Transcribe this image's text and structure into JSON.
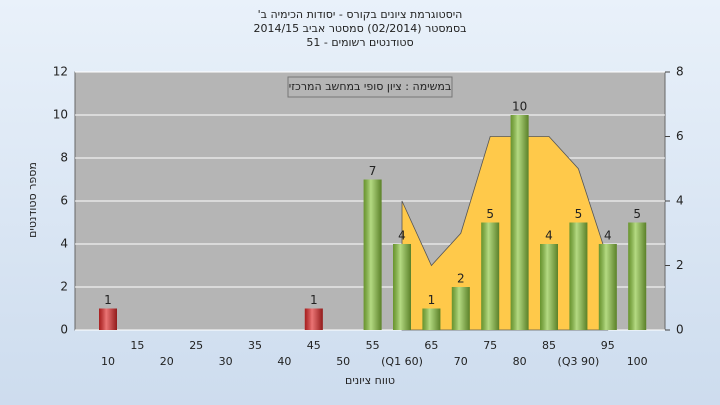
{
  "chart_data": {
    "type": "bar",
    "title_lines": [
      "היסטוגרמת ציונים בקורס - יסודות הכימיה ב'",
      "בסמסטר  (02/2014)  סמסטר אביב 2014/15",
      "סטודנטים רשומים - 51"
    ],
    "annotation": "במשימה : ציון סופי במחשב המרכזי",
    "x_label": "טווח ציונים",
    "y_label": "מספר סטודנטים",
    "categories": [
      "10",
      "15",
      "20",
      "25",
      "30",
      "35",
      "40",
      "45",
      "50",
      "55",
      "(Q1 60)",
      "65",
      "70",
      "75",
      "80",
      "85",
      "(Q3 90)",
      "95",
      "100"
    ],
    "values": [
      1,
      0,
      0,
      0,
      0,
      0,
      0,
      1,
      0,
      7,
      4,
      1,
      2,
      5,
      10,
      4,
      5,
      4,
      5
    ],
    "bar_colors": [
      "#e02a2a",
      "#e02a2a",
      "#e02a2a",
      "#e02a2a",
      "#e02a2a",
      "#e02a2a",
      "#e02a2a",
      "#e02a2a",
      "#e02a2a",
      "#8cc63f",
      "#8cc63f",
      "#8cc63f",
      "#8cc63f",
      "#8cc63f",
      "#8cc63f",
      "#8cc63f",
      "#8cc63f",
      "#8cc63f",
      "#8cc63f"
    ],
    "area": {
      "color": "#ffc94a",
      "axis": "y2",
      "values": [
        null,
        null,
        null,
        null,
        null,
        null,
        null,
        null,
        null,
        null,
        4,
        2,
        3,
        6,
        6,
        6,
        5,
        2.2,
        null
      ]
    },
    "ylim": [
      0,
      12
    ],
    "yticks": [
      0,
      2,
      4,
      6,
      8,
      10,
      12
    ],
    "y2lim": [
      0,
      8
    ],
    "y2ticks": [
      0,
      2,
      4,
      6,
      8
    ],
    "grid": true
  }
}
